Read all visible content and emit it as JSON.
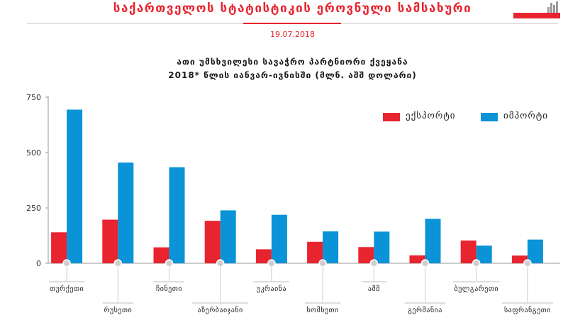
{
  "header": {
    "title": "საქართველოს სტატისტიკის ეროვნული სამსახური",
    "date": "19.07.2018"
  },
  "colors": {
    "export": "#e8242f",
    "import": "#0a93d6",
    "accent": "#e8242f",
    "axis": "#9a9a9a"
  },
  "chart_data": {
    "type": "bar",
    "title": "ათი უმსხვილესი სავაჭრო პარტნიორი ქვეყანა",
    "subtitle": "2018* წლის იანვარ-ივნისში (მლნ. აშშ დოლარი)",
    "xlabel": "",
    "ylabel": "",
    "ylim": [
      0,
      750
    ],
    "yticks": [
      0,
      250,
      500,
      750
    ],
    "grid": false,
    "legend_position": "top-right",
    "categories": [
      "თურქეთი",
      "რუსეთი",
      "ჩინეთი",
      "აზერბაიჯანი",
      "უკრაინა",
      "სომხეთი",
      "აშშ",
      "გერმანია",
      "ბულგარეთი",
      "საფრანგეთი"
    ],
    "series": [
      {
        "name": "ექსპორტი",
        "values": [
          140,
          197,
          72,
          192,
          63,
          97,
          73,
          36,
          103,
          35
        ]
      },
      {
        "name": "იმპორტი",
        "values": [
          694,
          455,
          434,
          239,
          219,
          144,
          143,
          201,
          80,
          107
        ]
      }
    ]
  }
}
